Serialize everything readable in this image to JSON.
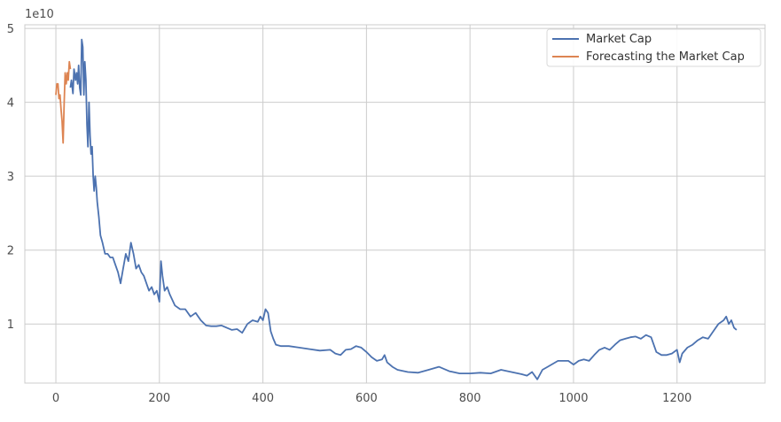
{
  "chart_data": {
    "type": "line",
    "axis_offset_label": "1e10",
    "xlim": [
      -60,
      1370
    ],
    "ylim": [
      0.2,
      5.05
    ],
    "x_ticks": [
      0,
      200,
      400,
      600,
      800,
      1000,
      1200
    ],
    "x_tick_labels": [
      "0",
      "200",
      "400",
      "600",
      "800",
      "1000",
      "1200"
    ],
    "y_ticks": [
      1,
      2,
      3,
      4,
      5
    ],
    "y_tick_labels": [
      "1",
      "2",
      "3",
      "4",
      "5"
    ],
    "grid": true,
    "legend_position": "top-right",
    "colors": {
      "market_cap": "#4c72b0",
      "forecast": "#dd8452",
      "grid": "#cccccc"
    },
    "series": [
      {
        "name": "Market Cap",
        "color": "#4c72b0",
        "points": [
          [
            28,
            4.2
          ],
          [
            30,
            4.3
          ],
          [
            33,
            4.12
          ],
          [
            35,
            4.45
          ],
          [
            38,
            4.3
          ],
          [
            40,
            4.4
          ],
          [
            42,
            4.25
          ],
          [
            44,
            4.5
          ],
          [
            46,
            4.2
          ],
          [
            48,
            4.1
          ],
          [
            50,
            4.85
          ],
          [
            52,
            4.75
          ],
          [
            54,
            4.1
          ],
          [
            56,
            4.55
          ],
          [
            58,
            4.3
          ],
          [
            60,
            3.7
          ],
          [
            62,
            3.4
          ],
          [
            64,
            4.0
          ],
          [
            66,
            3.55
          ],
          [
            68,
            3.3
          ],
          [
            70,
            3.4
          ],
          [
            72,
            3.0
          ],
          [
            74,
            2.8
          ],
          [
            76,
            3.0
          ],
          [
            78,
            2.85
          ],
          [
            80,
            2.65
          ],
          [
            83,
            2.45
          ],
          [
            86,
            2.2
          ],
          [
            90,
            2.1
          ],
          [
            95,
            1.95
          ],
          [
            100,
            1.95
          ],
          [
            105,
            1.9
          ],
          [
            110,
            1.9
          ],
          [
            115,
            1.8
          ],
          [
            120,
            1.7
          ],
          [
            125,
            1.55
          ],
          [
            130,
            1.75
          ],
          [
            135,
            1.95
          ],
          [
            140,
            1.85
          ],
          [
            145,
            2.1
          ],
          [
            150,
            1.95
          ],
          [
            155,
            1.75
          ],
          [
            160,
            1.8
          ],
          [
            165,
            1.7
          ],
          [
            170,
            1.65
          ],
          [
            175,
            1.55
          ],
          [
            180,
            1.45
          ],
          [
            185,
            1.5
          ],
          [
            190,
            1.4
          ],
          [
            195,
            1.45
          ],
          [
            200,
            1.3
          ],
          [
            203,
            1.85
          ],
          [
            206,
            1.65
          ],
          [
            210,
            1.45
          ],
          [
            215,
            1.5
          ],
          [
            220,
            1.4
          ],
          [
            230,
            1.25
          ],
          [
            240,
            1.2
          ],
          [
            250,
            1.2
          ],
          [
            260,
            1.1
          ],
          [
            270,
            1.15
          ],
          [
            280,
            1.05
          ],
          [
            290,
            0.98
          ],
          [
            300,
            0.97
          ],
          [
            310,
            0.97
          ],
          [
            320,
            0.98
          ],
          [
            330,
            0.95
          ],
          [
            340,
            0.92
          ],
          [
            350,
            0.93
          ],
          [
            360,
            0.88
          ],
          [
            370,
            1.0
          ],
          [
            380,
            1.05
          ],
          [
            390,
            1.03
          ],
          [
            395,
            1.1
          ],
          [
            400,
            1.05
          ],
          [
            405,
            1.2
          ],
          [
            410,
            1.15
          ],
          [
            415,
            0.9
          ],
          [
            420,
            0.8
          ],
          [
            425,
            0.72
          ],
          [
            435,
            0.7
          ],
          [
            450,
            0.7
          ],
          [
            470,
            0.68
          ],
          [
            490,
            0.66
          ],
          [
            510,
            0.64
          ],
          [
            530,
            0.65
          ],
          [
            540,
            0.6
          ],
          [
            550,
            0.58
          ],
          [
            560,
            0.65
          ],
          [
            570,
            0.66
          ],
          [
            580,
            0.7
          ],
          [
            590,
            0.68
          ],
          [
            600,
            0.62
          ],
          [
            610,
            0.55
          ],
          [
            620,
            0.5
          ],
          [
            630,
            0.52
          ],
          [
            635,
            0.58
          ],
          [
            640,
            0.48
          ],
          [
            650,
            0.42
          ],
          [
            660,
            0.38
          ],
          [
            680,
            0.35
          ],
          [
            700,
            0.34
          ],
          [
            720,
            0.38
          ],
          [
            740,
            0.42
          ],
          [
            760,
            0.36
          ],
          [
            780,
            0.33
          ],
          [
            800,
            0.33
          ],
          [
            820,
            0.34
          ],
          [
            840,
            0.33
          ],
          [
            860,
            0.38
          ],
          [
            880,
            0.35
          ],
          [
            900,
            0.32
          ],
          [
            910,
            0.3
          ],
          [
            920,
            0.35
          ],
          [
            930,
            0.25
          ],
          [
            940,
            0.38
          ],
          [
            950,
            0.42
          ],
          [
            970,
            0.5
          ],
          [
            990,
            0.5
          ],
          [
            1000,
            0.45
          ],
          [
            1010,
            0.5
          ],
          [
            1020,
            0.52
          ],
          [
            1030,
            0.5
          ],
          [
            1040,
            0.58
          ],
          [
            1050,
            0.65
          ],
          [
            1060,
            0.68
          ],
          [
            1070,
            0.65
          ],
          [
            1080,
            0.72
          ],
          [
            1090,
            0.78
          ],
          [
            1100,
            0.8
          ],
          [
            1110,
            0.82
          ],
          [
            1120,
            0.83
          ],
          [
            1130,
            0.8
          ],
          [
            1140,
            0.85
          ],
          [
            1150,
            0.82
          ],
          [
            1160,
            0.62
          ],
          [
            1170,
            0.58
          ],
          [
            1180,
            0.58
          ],
          [
            1190,
            0.6
          ],
          [
            1200,
            0.65
          ],
          [
            1205,
            0.48
          ],
          [
            1210,
            0.6
          ],
          [
            1220,
            0.68
          ],
          [
            1230,
            0.72
          ],
          [
            1240,
            0.78
          ],
          [
            1250,
            0.82
          ],
          [
            1260,
            0.8
          ],
          [
            1270,
            0.9
          ],
          [
            1280,
            1.0
          ],
          [
            1290,
            1.05
          ],
          [
            1295,
            1.1
          ],
          [
            1300,
            1.0
          ],
          [
            1305,
            1.05
          ],
          [
            1310,
            0.95
          ],
          [
            1315,
            0.92
          ]
        ]
      },
      {
        "name": "Forecasting the Market Cap",
        "color": "#dd8452",
        "points": [
          [
            0,
            4.1
          ],
          [
            2,
            4.25
          ],
          [
            4,
            4.25
          ],
          [
            6,
            4.05
          ],
          [
            8,
            4.1
          ],
          [
            10,
            3.9
          ],
          [
            12,
            3.75
          ],
          [
            14,
            3.45
          ],
          [
            16,
            4.0
          ],
          [
            18,
            4.4
          ],
          [
            20,
            4.25
          ],
          [
            22,
            4.4
          ],
          [
            24,
            4.3
          ],
          [
            26,
            4.55
          ],
          [
            28,
            4.45
          ]
        ]
      }
    ]
  }
}
